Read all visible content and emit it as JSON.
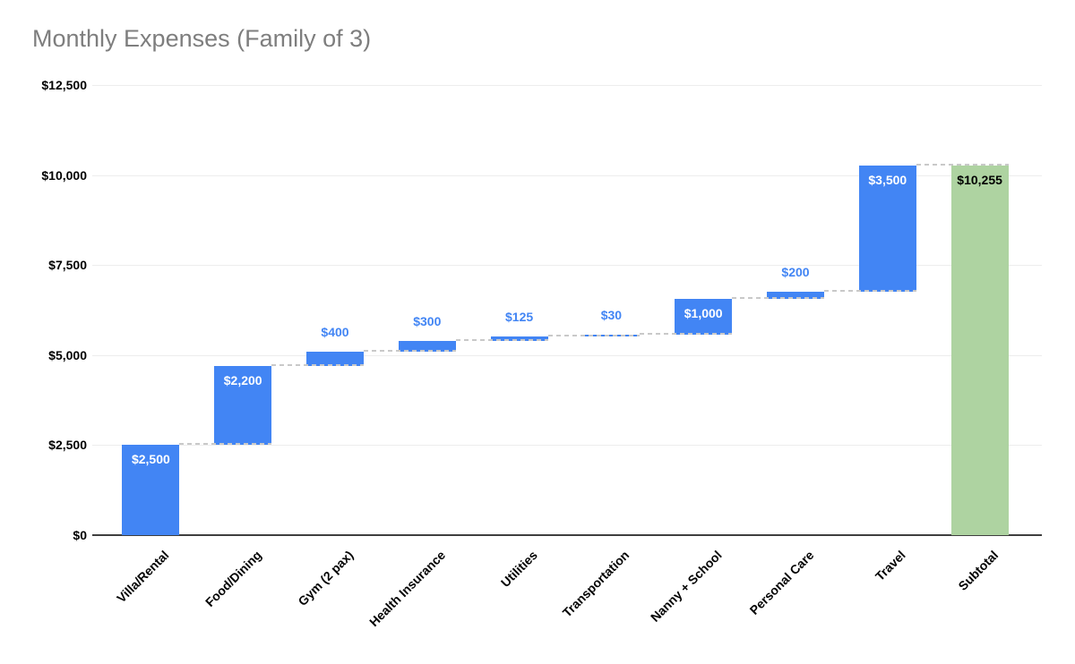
{
  "title": "Monthly Expenses (Family of 3)",
  "chart_data": {
    "type": "bar",
    "subtype": "waterfall",
    "title": "Monthly Expenses (Family of 3)",
    "xlabel": "",
    "ylabel": "",
    "legend": "none",
    "grid": true,
    "categories": [
      "Villa/Rental",
      "Food/Dining",
      "Gym (2 pax)",
      "Health Insurance",
      "Utilities",
      "Transportation",
      "Nanny + School",
      "Personal Care",
      "Travel",
      "Subtotal"
    ],
    "values": [
      2500,
      2200,
      400,
      300,
      125,
      30,
      1000,
      200,
      3500,
      10255
    ],
    "value_labels": [
      "$2,500",
      "$2,200",
      "$400",
      "$300",
      "$125",
      "$30",
      "$1,000",
      "$200",
      "$3,500",
      "$10,255"
    ],
    "roles": [
      "increase",
      "increase",
      "increase",
      "increase",
      "increase",
      "increase",
      "increase",
      "increase",
      "increase",
      "subtotal"
    ],
    "running_total": [
      2500,
      4700,
      5100,
      5400,
      5525,
      5555,
      6555,
      6755,
      10255,
      10255
    ],
    "subtotal_value": 10255,
    "y_axis": {
      "tick_labels": [
        "$0",
        "$2,500",
        "$5,000",
        "$7,500",
        "$10,000",
        "$12,500"
      ],
      "tick_values": [
        0,
        2500,
        5000,
        7500,
        10000,
        12500
      ],
      "range": [
        0,
        12500
      ]
    },
    "connector_style": "dashed",
    "colors": {
      "increase_bar": "#4285F4",
      "subtotal_bar": "#AED3A1",
      "label_inside": "#FFFFFF",
      "label_inside_subtotal": "#000000",
      "label_outside": "#4285F4",
      "connector": "#C9C9C9",
      "gridline": "#EDEDED",
      "axis_line": "#3F3F3F",
      "title_text": "#7E7E7E",
      "tick_text": "#000000"
    }
  }
}
